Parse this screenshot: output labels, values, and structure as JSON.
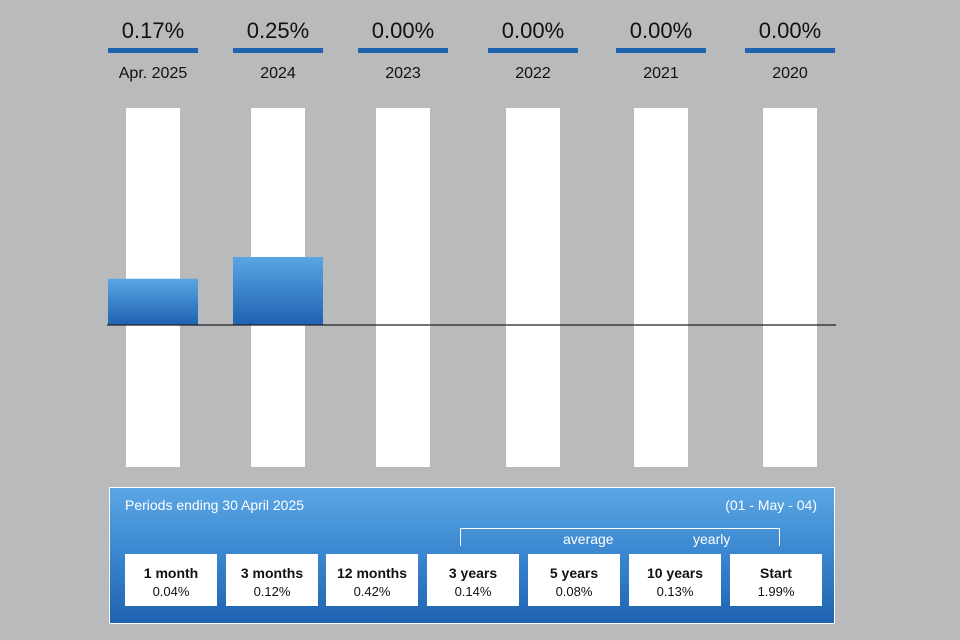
{
  "chart_data": {
    "type": "bar",
    "categories": [
      "Apr. 2025",
      "2024",
      "2023",
      "2022",
      "2021",
      "2020"
    ],
    "values": [
      0.17,
      0.25,
      0.0,
      0.0,
      0.0,
      0.0
    ],
    "value_labels": [
      "0.17%",
      "0.25%",
      "0.00%",
      "0.00%",
      "0.00%",
      "0.00%"
    ],
    "ylim": [
      -0.35,
      0.53
    ],
    "colors": {
      "bar_top": "#5aa6e4",
      "bar_bottom": "#1e62b0",
      "track": "#ffffff",
      "header_line": "#1e62b0",
      "zero_line": "#222222"
    }
  },
  "periods_panel": {
    "title": "Periods ending 30 April 2025",
    "inception": "(01 - May - 04)",
    "average_label": "average",
    "yearly_label": "yearly",
    "items": [
      {
        "label": "1 month",
        "value": "0.04%"
      },
      {
        "label": "3 months",
        "value": "0.12%"
      },
      {
        "label": "12 months",
        "value": "0.42%"
      },
      {
        "label": "3 years",
        "value": "0.14%"
      },
      {
        "label": "5 years",
        "value": "0.08%"
      },
      {
        "label": "10 years",
        "value": "0.13%"
      },
      {
        "label": "Start",
        "value": "1.99%"
      }
    ]
  }
}
